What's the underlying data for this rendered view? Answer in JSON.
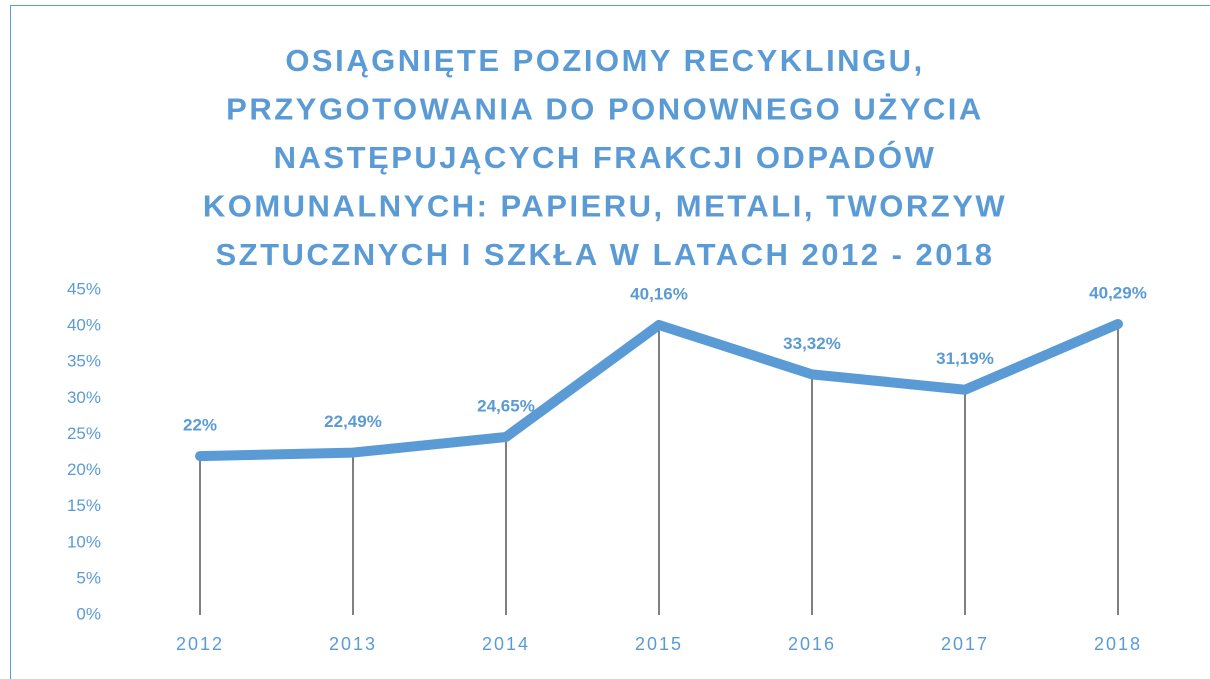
{
  "chart_data": {
    "type": "line",
    "title": [
      "OSIĄGNIĘTE POZIOMY RECYKLINGU,",
      "PRZYGOTOWANIA DO PONOWNEGO UŻYCIA",
      "NASTĘPUJĄCYCH FRAKCJI ODPADÓW",
      "KOMUNALNYCH: PAPIERU, METALI, TWORZYW",
      "SZTUCZNYCH I SZKŁA W LATACH 2012 - 2018"
    ],
    "categories": [
      "2012",
      "2013",
      "2014",
      "2015",
      "2016",
      "2017",
      "2018"
    ],
    "values": [
      22,
      22.49,
      24.65,
      40.16,
      33.32,
      31.19,
      40.29
    ],
    "value_labels": [
      "22%",
      "22,49%",
      "24,65%",
      "40,16%",
      "33,32%",
      "31,19%",
      "40,29%"
    ],
    "color": "#5b9bd5",
    "ylim": [
      0,
      45
    ],
    "yticks": [
      {
        "value": 0,
        "label": "0%"
      },
      {
        "value": 5,
        "label": "5%"
      },
      {
        "value": 10,
        "label": "10%"
      },
      {
        "value": 15,
        "label": "15%"
      },
      {
        "value": 20,
        "label": "20%"
      },
      {
        "value": 25,
        "label": "25%"
      },
      {
        "value": 30,
        "label": "30%"
      },
      {
        "value": 35,
        "label": "35%"
      },
      {
        "value": 40,
        "label": "40%"
      },
      {
        "value": 45,
        "label": "45%"
      }
    ]
  }
}
